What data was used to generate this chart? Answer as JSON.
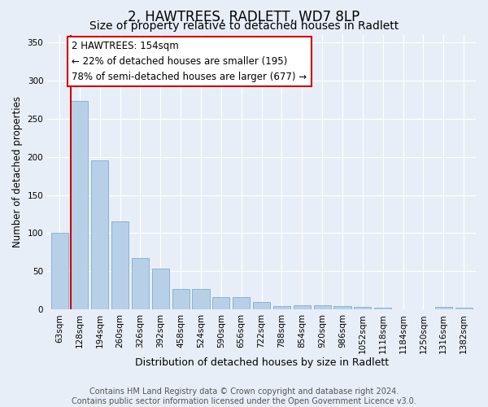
{
  "title": "2, HAWTREES, RADLETT, WD7 8LP",
  "subtitle": "Size of property relative to detached houses in Radlett",
  "xlabel": "Distribution of detached houses by size in Radlett",
  "ylabel": "Number of detached properties",
  "categories": [
    "63sqm",
    "128sqm",
    "194sqm",
    "260sqm",
    "326sqm",
    "392sqm",
    "458sqm",
    "524sqm",
    "590sqm",
    "656sqm",
    "722sqm",
    "788sqm",
    "854sqm",
    "920sqm",
    "986sqm",
    "1052sqm",
    "1118sqm",
    "1184sqm",
    "1250sqm",
    "1316sqm",
    "1382sqm"
  ],
  "values": [
    100,
    273,
    195,
    115,
    67,
    54,
    27,
    27,
    16,
    16,
    10,
    5,
    6,
    6,
    5,
    4,
    2,
    0,
    0,
    4,
    3
  ],
  "bar_color": "#b8cfe8",
  "bar_edge_color": "#7aaed0",
  "property_line_color": "#cc0000",
  "property_bar_index": 1,
  "annotation_text": "2 HAWTREES: 154sqm\n← 22% of detached houses are smaller (195)\n78% of semi-detached houses are larger (677) →",
  "annotation_box_facecolor": "#ffffff",
  "annotation_box_edgecolor": "#cc0000",
  "ylim": [
    0,
    360
  ],
  "yticks": [
    0,
    50,
    100,
    150,
    200,
    250,
    300,
    350
  ],
  "background_color": "#e8eef8",
  "grid_color": "#ffffff",
  "footer_text": "Contains HM Land Registry data © Crown copyright and database right 2024.\nContains public sector information licensed under the Open Government Licence v3.0.",
  "title_fontsize": 12,
  "subtitle_fontsize": 10,
  "xlabel_fontsize": 9,
  "ylabel_fontsize": 8.5,
  "tick_fontsize": 7.5,
  "annotation_fontsize": 8.5,
  "footer_fontsize": 7
}
